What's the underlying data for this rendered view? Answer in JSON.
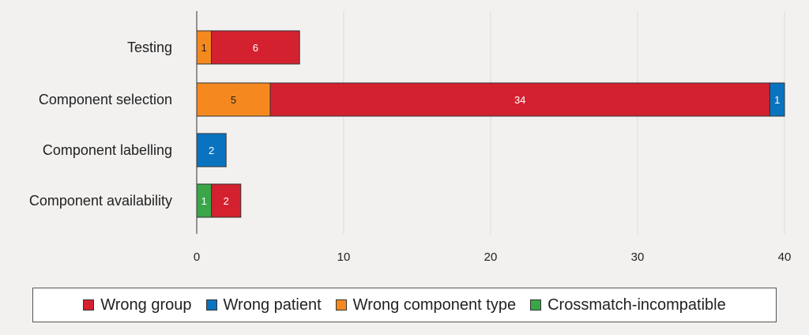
{
  "chart_data": {
    "type": "bar",
    "orientation": "horizontal",
    "stacked": true,
    "categories": [
      "Testing",
      "Component selection",
      "Component labelling",
      "Component availability"
    ],
    "series": [
      {
        "name": "Crossmatch-incompatible",
        "color": "#3aa648",
        "values": [
          0,
          0,
          0,
          1
        ]
      },
      {
        "name": "Wrong component type",
        "color": "#f5891f",
        "values": [
          1,
          5,
          0,
          0
        ]
      },
      {
        "name": "Wrong group",
        "color": "#d4212f",
        "values": [
          6,
          34,
          0,
          2
        ]
      },
      {
        "name": "Wrong patient",
        "color": "#0a73bf",
        "values": [
          0,
          1,
          2,
          0
        ]
      }
    ],
    "xlim": [
      0,
      40
    ],
    "xticks": [
      "0",
      "10",
      "20",
      "30",
      "40"
    ],
    "grid": true,
    "legend_position": "bottom",
    "legend_order": [
      "Wrong group",
      "Wrong patient",
      "Wrong component type",
      "Crossmatch-incompatible"
    ]
  }
}
